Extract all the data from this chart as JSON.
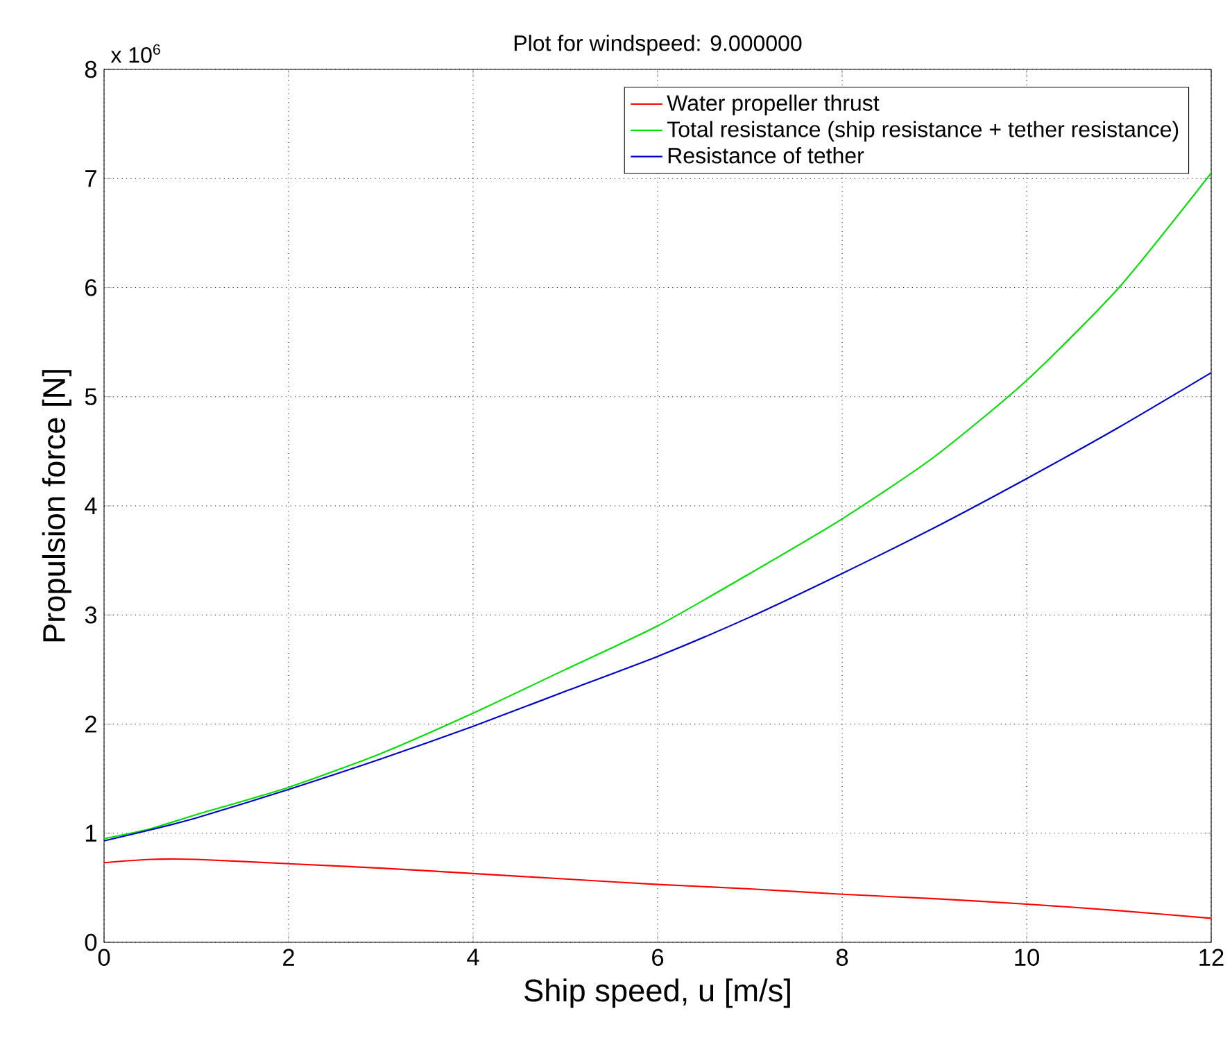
{
  "chart_data": {
    "type": "line",
    "title": "Plot for windspeed: 9.000000",
    "xlabel": "Ship speed, u [m/s]",
    "ylabel": "Propulsion force [N]",
    "annotations": [
      "x 10$^{6}$"
    ],
    "x": [
      0,
      0.5,
      1,
      2,
      3,
      4,
      5,
      6,
      7,
      8,
      9,
      10,
      11,
      12
    ],
    "series": [
      {
        "name": "Water propeller thrust",
        "color": "#ff0000",
        "values": [
          0.73,
          0.76,
          0.76,
          0.72,
          0.68,
          0.63,
          0.58,
          0.53,
          0.49,
          0.44,
          0.4,
          0.35,
          0.29,
          0.22
        ]
      },
      {
        "name": "Total resistance (ship resistance + tether resistance)",
        "color": "#00e000",
        "values": [
          0.95,
          1.04,
          1.17,
          1.42,
          1.73,
          2.1,
          2.5,
          2.9,
          3.38,
          3.88,
          4.45,
          5.15,
          6.0,
          7.05
        ]
      },
      {
        "name": "Resistance of tether",
        "color": "#0000cc",
        "values": [
          0.93,
          1.03,
          1.14,
          1.4,
          1.68,
          1.98,
          2.3,
          2.62,
          2.98,
          3.38,
          3.8,
          4.25,
          4.72,
          5.22
        ]
      }
    ],
    "xlim": [
      0,
      12
    ],
    "ylim": [
      0,
      8
    ],
    "xticks": [
      0,
      2,
      4,
      6,
      8,
      10,
      12
    ],
    "yticks": [
      0,
      1,
      2,
      3,
      4,
      5,
      6,
      7,
      8
    ],
    "grid": true,
    "legend": "top right",
    "marker": "none",
    "line_style": "solid"
  }
}
